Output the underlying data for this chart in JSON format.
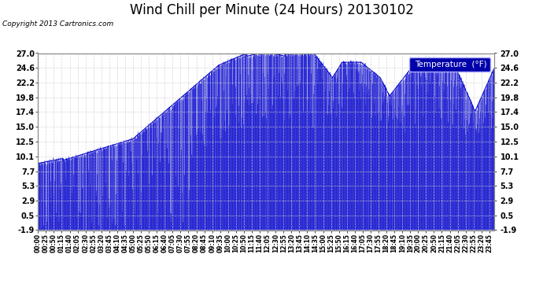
{
  "title": "Wind Chill per Minute (24 Hours) 20130102",
  "copyright": "Copyright 2013 Cartronics.com",
  "legend_label": "Temperature  (°F)",
  "yticks": [
    27.0,
    24.6,
    22.2,
    19.8,
    17.4,
    15.0,
    12.5,
    10.1,
    7.7,
    5.3,
    2.9,
    0.5,
    -1.9
  ],
  "ymin": -1.9,
  "ymax": 27.0,
  "bg_color": "#ffffff",
  "plot_bg_color": "#ffffff",
  "line_color": "#0000cc",
  "title_fontsize": 12,
  "tick_fontsize": 7,
  "legend_bg": "#0000aa",
  "legend_text_color": "#ffffff",
  "grid_color": "#cccccc"
}
